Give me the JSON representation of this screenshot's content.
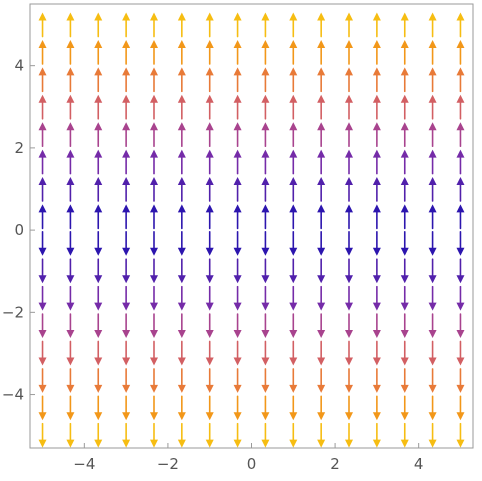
{
  "chart_data": {
    "type": "vector_field",
    "title": "",
    "xlabel": "",
    "ylabel": "",
    "xlim": [
      -5.3,
      5.3
    ],
    "ylim": [
      -5.3,
      5.5
    ],
    "grid": false,
    "legend": "none",
    "x_ticks": [
      -4,
      -2,
      0,
      2,
      4
    ],
    "y_ticks": [
      -4,
      -2,
      0,
      2,
      4
    ],
    "x_tick_labels": [
      "−4",
      "−2",
      "0",
      "2",
      "4"
    ],
    "y_tick_labels": [
      "−4",
      "−2",
      "0",
      "2",
      "4"
    ],
    "grid_x": [
      -5.0,
      -4.333,
      -3.667,
      -3.0,
      -2.333,
      -1.667,
      -1.0,
      -0.333,
      0.333,
      1.0,
      1.667,
      2.333,
      3.0,
      3.667,
      4.333,
      5.0
    ],
    "grid_y": [
      -5.0,
      -4.333,
      -3.667,
      -3.0,
      -2.333,
      -1.667,
      -1.0,
      -0.333,
      0.333,
      1.0,
      1.667,
      2.333,
      3.0,
      3.667,
      4.333,
      5.0
    ],
    "field": "vertical only: arrow points up where y > 0 and down where y < 0; magnitude grows with |y|",
    "color_map": "by |y|: dark blue near 0, through purple and red to orange and yellow at |y| = 5",
    "colors": {
      "low": "#1a0fb0",
      "mid_low": "#7a2ca8",
      "mid": "#b54a86",
      "mid_high": "#e06a52",
      "high": "#f08a1c",
      "top": "#f6bd12"
    }
  }
}
